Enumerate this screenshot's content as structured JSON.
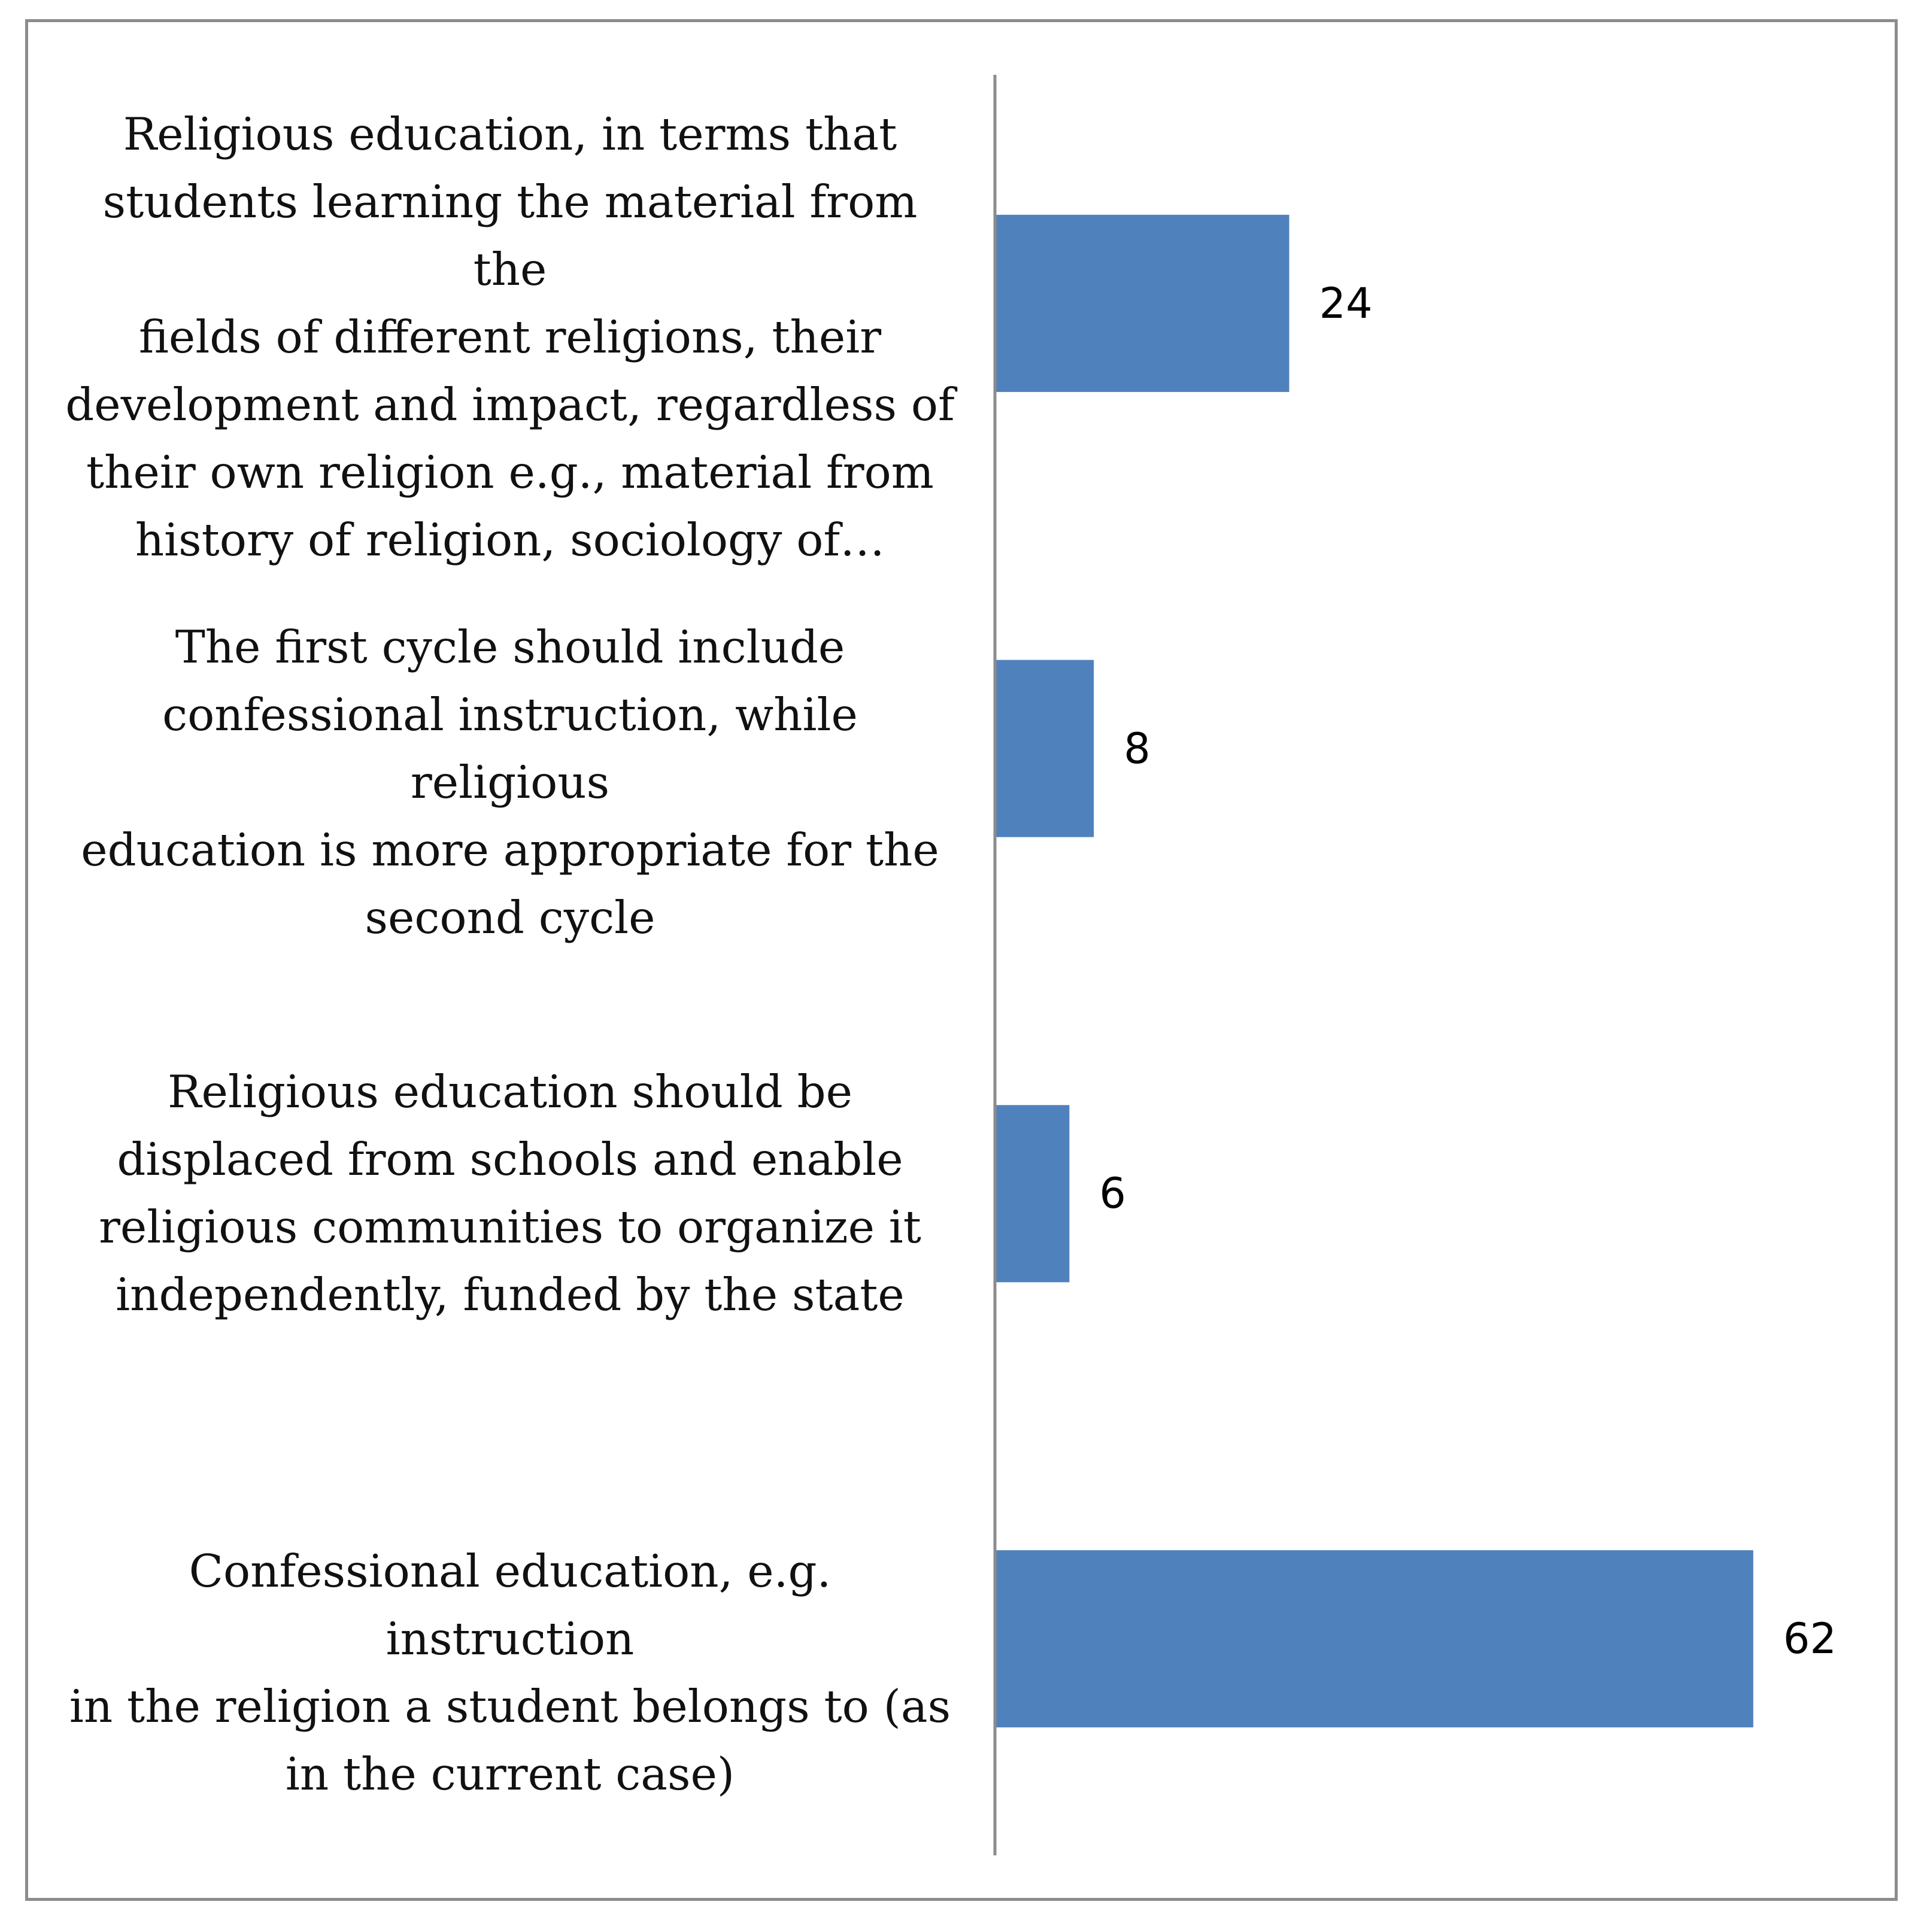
{
  "chart_data": {
    "type": "bar",
    "orientation": "horizontal",
    "categories": [
      "Religious education, in terms that\nstudents learning the material from the\nfields of different religions, their\ndevelopment and impact, regardless of\ntheir own religion e.g., material from\nhistory of religion, sociology of…",
      "The first cycle should include\nconfessional instruction, while religious\neducation is more appropriate for the\nsecond cycle",
      "Religious education should be\ndisplaced from schools and enable\nreligious communities to organize it\nindependently, funded by the state",
      "Confessional education, e.g. instruction\nin the religion a student belongs to (as\nin the current case)"
    ],
    "values": [
      24,
      8,
      6,
      62
    ],
    "value_labels": [
      "24",
      "8",
      "6",
      "62"
    ],
    "xlim": [
      0,
      70
    ],
    "grid": false,
    "legend": "none",
    "bar_color": "#4f81bd",
    "axis_color": "#8c8c8c"
  }
}
